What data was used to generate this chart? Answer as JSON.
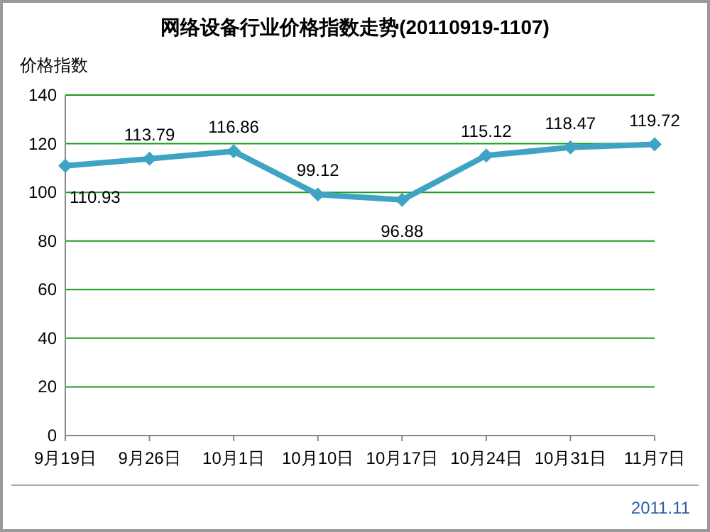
{
  "chart_data": {
    "type": "line",
    "title": "网络设备行业价格指数走势(20110919-1107)",
    "ylabel": "价格指数",
    "categories": [
      "9月19日",
      "9月26日",
      "10月1日",
      "10月10日",
      "10月17日",
      "10月24日",
      "10月31日",
      "11月7日"
    ],
    "series": [
      {
        "color": "#3fa3c4",
        "values": [
          110.93,
          113.79,
          116.86,
          99.12,
          96.88,
          115.12,
          118.47,
          119.72
        ]
      }
    ],
    "ylim": [
      0,
      140
    ],
    "yticks": [
      0,
      20,
      40,
      60,
      80,
      100,
      120,
      140
    ],
    "grid": "y",
    "marker": "diamond",
    "line_style": "solid",
    "data_labels": true,
    "annotations": [
      "2011.11"
    ]
  }
}
